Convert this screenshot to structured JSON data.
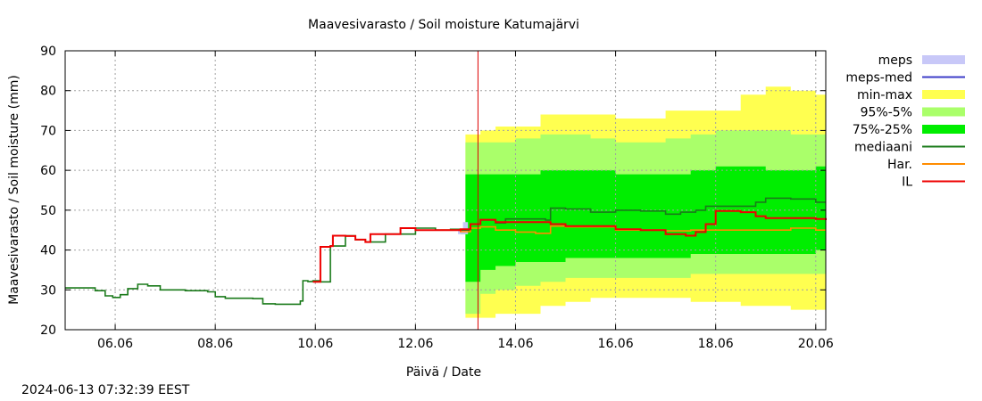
{
  "chart_data": {
    "type": "line",
    "title": "Maavesivarasto / Soil moisture   Katumajärvi",
    "xlabel": "Päivä / Date",
    "ylabel": "Maavesivarasto / Soil moisture (mm)",
    "timestamp": "2024-06-13 07:32:39 EEST",
    "xlim": [
      5.0,
      20.2
    ],
    "ylim": [
      20,
      90
    ],
    "x_ticks": [
      6,
      8,
      10,
      12,
      14,
      16,
      18,
      20
    ],
    "x_tick_labels": [
      "06.06",
      "08.06",
      "10.06",
      "12.06",
      "14.06",
      "16.06",
      "18.06",
      "20.06"
    ],
    "y_ticks": [
      20,
      30,
      40,
      50,
      60,
      70,
      80,
      90
    ],
    "y_tick_labels": [
      "20",
      "30",
      "40",
      "50",
      "60",
      "70",
      "80",
      "90"
    ],
    "grid": true,
    "now_x": 13.25,
    "legend": [
      {
        "key": "meps",
        "label": "meps",
        "type": "band",
        "color": "#c8c8f8"
      },
      {
        "key": "meps_med",
        "label": "meps-med",
        "type": "line",
        "color": "#3c3cc8"
      },
      {
        "key": "minmax",
        "label": "min-max",
        "type": "band",
        "color": "#ffff50"
      },
      {
        "key": "p95_5",
        "label": "95%-5%",
        "type": "band",
        "color": "#aaff6a"
      },
      {
        "key": "p75_25",
        "label": "75%-25%",
        "type": "band",
        "color": "#00ee00"
      },
      {
        "key": "median",
        "label": "mediaani",
        "type": "line",
        "color": "#1a7a1a"
      },
      {
        "key": "har",
        "label": "Har.",
        "type": "line",
        "color": "#ff8c00"
      },
      {
        "key": "il",
        "label": "IL",
        "type": "line",
        "color": "#ee0000"
      }
    ],
    "forecast_x": [
      12.9,
      13.0,
      13.3,
      13.6,
      14.0,
      14.5,
      15.0,
      15.5,
      16.0,
      16.5,
      17.0,
      17.5,
      18.0,
      18.5,
      19.0,
      19.5,
      20.0,
      20.2
    ],
    "series": [
      {
        "name": "min-max",
        "upper": [
          45,
          69,
          70,
          71,
          71,
          74,
          74,
          74,
          73,
          73,
          75,
          75,
          75,
          79,
          81,
          80,
          79,
          79
        ],
        "lower": [
          44,
          23,
          23,
          24,
          24,
          26,
          27,
          28,
          28,
          28,
          28,
          27,
          27,
          26,
          26,
          25,
          25,
          25
        ]
      },
      {
        "name": "95%-5%",
        "upper": [
          45,
          67,
          67,
          67,
          68,
          69,
          69,
          68,
          67,
          67,
          68,
          69,
          70,
          70,
          70,
          69,
          69,
          69
        ],
        "lower": [
          44,
          24,
          29,
          30,
          31,
          32,
          33,
          33,
          33,
          33,
          33,
          34,
          34,
          34,
          34,
          34,
          34,
          34
        ]
      },
      {
        "name": "75%-25%",
        "upper": [
          45,
          59,
          59,
          59,
          59,
          60,
          60,
          60,
          59,
          59,
          59,
          60,
          61,
          61,
          60,
          60,
          61,
          61
        ],
        "lower": [
          44,
          32,
          35,
          36,
          37,
          37,
          38,
          38,
          38,
          38,
          38,
          39,
          39,
          39,
          39,
          39,
          40,
          40
        ]
      },
      {
        "name": "meps",
        "x": [
          12.85,
          12.95,
          13.05
        ],
        "upper": [
          45,
          47,
          48
        ],
        "lower": [
          44,
          44,
          45
        ]
      },
      {
        "name": "mediaani",
        "x": [
          5.0,
          5.4,
          5.6,
          5.8,
          5.95,
          6.1,
          6.25,
          6.45,
          6.65,
          6.9,
          7.1,
          7.4,
          7.65,
          7.85,
          8.0,
          8.2,
          8.5,
          8.75,
          8.95,
          9.2,
          9.5,
          9.7,
          9.75,
          9.85,
          9.95,
          10.1,
          10.3,
          10.6,
          10.8,
          11.0,
          11.4,
          11.7,
          12.0,
          12.4,
          12.7,
          12.9,
          13.1,
          13.3,
          13.6,
          13.8,
          14.0,
          14.3,
          14.6,
          14.7,
          15.0,
          15.5,
          16.0,
          16.5,
          17.0,
          17.3,
          17.6,
          17.8,
          18.0,
          18.5,
          18.8,
          19.0,
          19.5,
          20.0,
          20.2
        ],
        "values": [
          30.5,
          30.5,
          29.8,
          28.5,
          28.1,
          28.8,
          30.3,
          31.4,
          31.0,
          30.0,
          30.0,
          29.8,
          29.8,
          29.5,
          28.3,
          27.9,
          27.9,
          27.8,
          26.5,
          26.4,
          26.4,
          27.2,
          32.3,
          32.1,
          32.3,
          32.0,
          41.0,
          43.6,
          42.6,
          42.0,
          44.0,
          44.0,
          45.5,
          45.0,
          45.2,
          45.0,
          46.5,
          47.5,
          46.8,
          47.8,
          47.8,
          47.8,
          47.5,
          50.5,
          50.3,
          49.5,
          50.0,
          49.8,
          49.0,
          49.5,
          50.0,
          51.0,
          51.0,
          51.0,
          52.0,
          53.0,
          52.8,
          52.0,
          52.0
        ]
      },
      {
        "name": "Har.",
        "x": [
          12.5,
          12.9,
          13.1,
          13.3,
          13.6,
          14.0,
          14.4,
          14.7,
          15.0,
          15.5,
          16.0,
          16.5,
          17.0,
          17.5,
          18.0,
          18.5,
          19.0,
          19.5,
          20.0,
          20.2
        ],
        "values": [
          45.0,
          44.6,
          45.5,
          45.8,
          45.0,
          44.5,
          44.2,
          46.0,
          45.8,
          45.8,
          45.0,
          45.0,
          44.8,
          45.0,
          45.0,
          45.0,
          45.0,
          45.5,
          45.0,
          45.0
        ]
      },
      {
        "name": "IL",
        "x": [
          9.95,
          10.05,
          10.1,
          10.3,
          10.35,
          10.6,
          10.8,
          11.0,
          11.1,
          11.4,
          11.6,
          11.7,
          12.0,
          12.4,
          12.7,
          12.9,
          13.1,
          13.3,
          13.6,
          14.0,
          14.4,
          14.7,
          15.0,
          15.5,
          16.0,
          16.5,
          17.0,
          17.4,
          17.6,
          17.8,
          18.0,
          18.4,
          18.5,
          18.8,
          19.0,
          19.5,
          20.0,
          20.2
        ],
        "values": [
          32.0,
          32.0,
          40.8,
          41.0,
          43.6,
          43.5,
          42.6,
          42.0,
          44.0,
          44.0,
          44.0,
          45.5,
          45.0,
          45.0,
          45.0,
          45.2,
          46.5,
          47.6,
          47.0,
          47.0,
          47.0,
          46.5,
          46.0,
          46.0,
          45.2,
          45.0,
          44.0,
          43.6,
          44.5,
          46.5,
          49.8,
          49.8,
          49.5,
          48.5,
          48.0,
          48.0,
          47.8,
          47.5
        ]
      }
    ]
  }
}
